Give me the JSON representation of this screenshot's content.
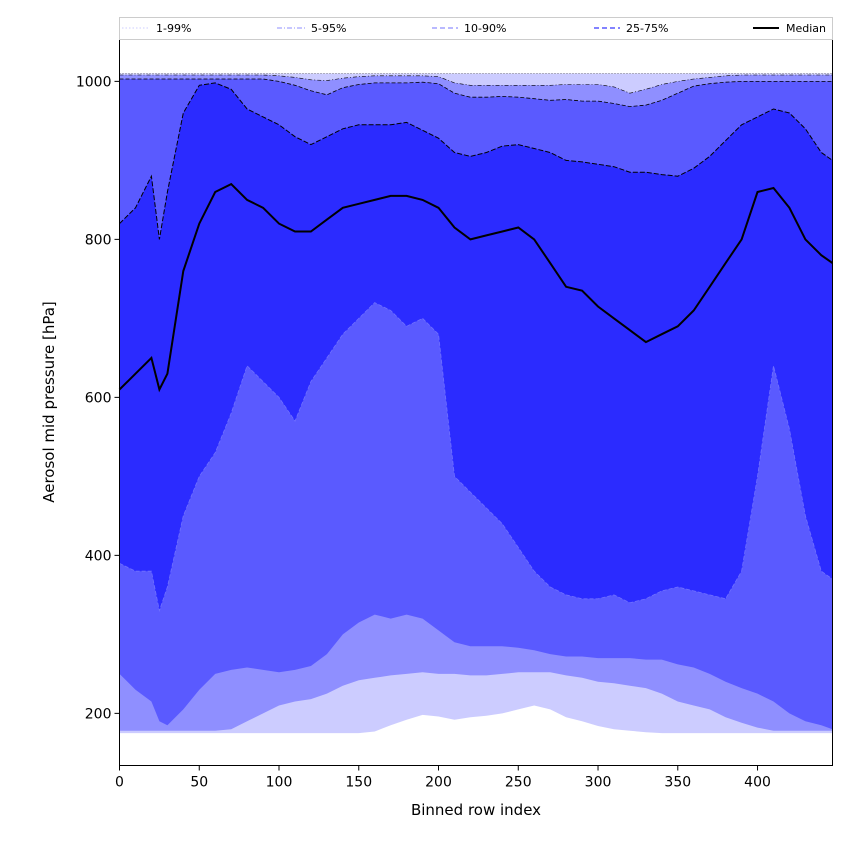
{
  "chart_data": {
    "type": "area",
    "title": "",
    "xlabel": "Binned row index",
    "ylabel": "Aerosol mid pressure [hPa]",
    "xlim": [
      0,
      447
    ],
    "ylim": [
      134,
      1053
    ],
    "xticks": [
      0,
      50,
      100,
      150,
      200,
      250,
      300,
      350,
      400
    ],
    "yticks": [
      200,
      400,
      600,
      800,
      1000
    ],
    "grid": false,
    "legend_position": "top",
    "legend": [
      {
        "name": "1-99%",
        "style": "dotted",
        "color": "#ccccff"
      },
      {
        "name": "5-95%",
        "style": "dashdot",
        "color": "#8f8fff"
      },
      {
        "name": "10-90%",
        "style": "dashed",
        "color": "#8f8fff"
      },
      {
        "name": "25-75%",
        "style": "dashed",
        "color": "#5a5aff"
      },
      {
        "name": "Median",
        "style": "solid",
        "color": "#000000"
      }
    ],
    "colors": {
      "band_1_99": "#ccccff",
      "band_5_95": "#8f8fff",
      "band_10_90": "#5a5aff",
      "band_25_75": "#2b2bff",
      "median": "#000000"
    },
    "x": [
      0,
      10,
      20,
      25,
      30,
      40,
      50,
      60,
      70,
      80,
      90,
      100,
      110,
      120,
      130,
      140,
      150,
      160,
      170,
      180,
      190,
      200,
      210,
      220,
      230,
      240,
      250,
      260,
      270,
      280,
      290,
      300,
      310,
      320,
      330,
      340,
      350,
      360,
      370,
      380,
      390,
      400,
      410,
      420,
      430,
      440,
      447
    ],
    "series": [
      {
        "name": "P99",
        "values": [
          1010,
          1010,
          1010,
          1010,
          1010,
          1010,
          1010,
          1010,
          1010,
          1010,
          1010,
          1010,
          1010,
          1010,
          1010,
          1010,
          1010,
          1010,
          1010,
          1010,
          1010,
          1010,
          1010,
          1010,
          1010,
          1010,
          1010,
          1010,
          1010,
          1010,
          1010,
          1010,
          1010,
          1010,
          1010,
          1010,
          1010,
          1010,
          1010,
          1010,
          1010,
          1010,
          1010,
          1010,
          1010,
          1010,
          1010
        ]
      },
      {
        "name": "P95",
        "values": [
          1008,
          1008,
          1008,
          1008,
          1008,
          1008,
          1008,
          1008,
          1008,
          1008,
          1008,
          1007,
          1005,
          1002,
          1001,
          1004,
          1006,
          1007,
          1007,
          1007,
          1007,
          1006,
          998,
          995,
          995,
          995,
          995,
          995,
          995,
          996,
          996,
          996,
          993,
          985,
          990,
          996,
          1000,
          1003,
          1005,
          1007,
          1008,
          1008,
          1008,
          1008,
          1008,
          1008,
          1008
        ]
      },
      {
        "name": "P90",
        "values": [
          1003,
          1003,
          1003,
          1003,
          1003,
          1003,
          1003,
          1003,
          1003,
          1003,
          1003,
          1000,
          995,
          988,
          983,
          992,
          996,
          998,
          998,
          998,
          999,
          997,
          985,
          980,
          980,
          981,
          980,
          978,
          976,
          977,
          975,
          975,
          972,
          968,
          970,
          976,
          985,
          994,
          997,
          999,
          1000,
          1000,
          1000,
          1000,
          1000,
          1000,
          1000
        ]
      },
      {
        "name": "P75",
        "values": [
          820,
          840,
          880,
          800,
          860,
          960,
          995,
          998,
          990,
          965,
          955,
          945,
          930,
          920,
          930,
          940,
          945,
          945,
          945,
          948,
          938,
          928,
          910,
          905,
          910,
          918,
          920,
          915,
          910,
          900,
          898,
          895,
          892,
          885,
          885,
          882,
          880,
          890,
          905,
          925,
          945,
          955,
          965,
          960,
          940,
          910,
          900
        ]
      },
      {
        "name": "Median",
        "values": [
          610,
          630,
          650,
          610,
          630,
          760,
          820,
          860,
          870,
          850,
          840,
          820,
          810,
          810,
          825,
          840,
          845,
          850,
          855,
          855,
          850,
          840,
          815,
          800,
          805,
          810,
          815,
          800,
          770,
          740,
          735,
          715,
          700,
          685,
          670,
          680,
          690,
          710,
          740,
          770,
          800,
          860,
          865,
          840,
          800,
          780,
          770
        ]
      },
      {
        "name": "P25",
        "values": [
          390,
          380,
          380,
          330,
          360,
          450,
          500,
          530,
          580,
          640,
          620,
          600,
          570,
          620,
          650,
          680,
          700,
          720,
          710,
          690,
          700,
          680,
          500,
          480,
          460,
          440,
          410,
          380,
          360,
          350,
          345,
          345,
          350,
          340,
          345,
          355,
          360,
          355,
          350,
          345,
          380,
          500,
          640,
          560,
          450,
          380,
          370
        ]
      },
      {
        "name": "P10",
        "values": [
          250,
          230,
          215,
          190,
          185,
          205,
          230,
          250,
          255,
          258,
          255,
          252,
          255,
          260,
          275,
          300,
          315,
          325,
          320,
          325,
          320,
          305,
          290,
          285,
          285,
          285,
          283,
          280,
          275,
          272,
          272,
          270,
          270,
          270,
          268,
          268,
          262,
          258,
          250,
          240,
          232,
          225,
          215,
          200,
          190,
          185,
          180
        ]
      },
      {
        "name": "P5",
        "values": [
          178,
          178,
          178,
          178,
          178,
          178,
          178,
          178,
          180,
          190,
          200,
          210,
          215,
          218,
          225,
          235,
          242,
          245,
          248,
          250,
          252,
          250,
          250,
          248,
          248,
          250,
          252,
          252,
          252,
          248,
          245,
          240,
          238,
          235,
          232,
          225,
          215,
          210,
          205,
          195,
          188,
          182,
          178,
          178,
          178,
          178,
          178
        ]
      },
      {
        "name": "P1",
        "values": [
          175,
          175,
          175,
          175,
          175,
          175,
          175,
          175,
          175,
          175,
          175,
          175,
          175,
          175,
          175,
          175,
          175,
          177,
          185,
          192,
          198,
          196,
          192,
          195,
          197,
          200,
          205,
          210,
          205,
          195,
          190,
          184,
          180,
          178,
          176,
          175,
          175,
          175,
          175,
          175,
          175,
          175,
          175,
          175,
          175,
          175,
          175
        ]
      }
    ]
  }
}
